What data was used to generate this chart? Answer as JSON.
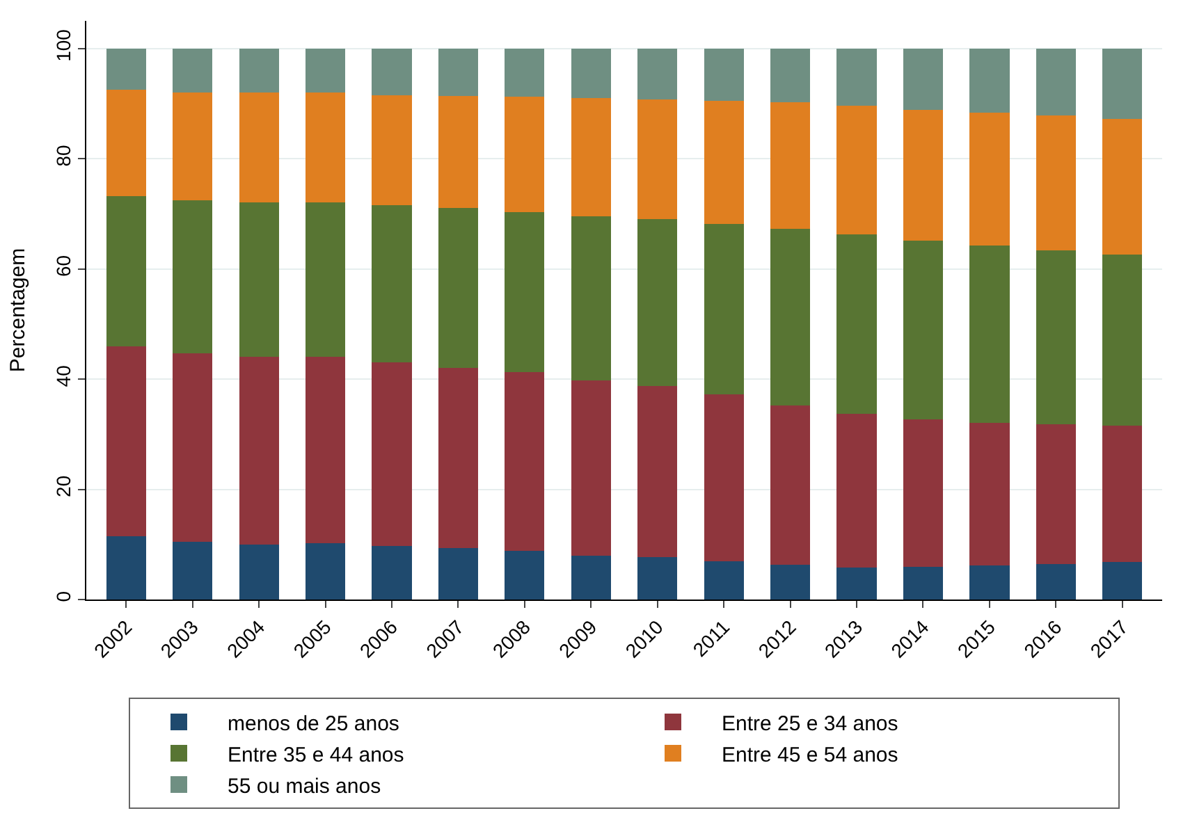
{
  "chart_data": {
    "type": "bar",
    "stacked": true,
    "ylabel": "Percentagem",
    "categories": [
      "2002",
      "2003",
      "2004",
      "2005",
      "2006",
      "2007",
      "2008",
      "2009",
      "2010",
      "2011",
      "2012",
      "2013",
      "2014",
      "2015",
      "2016",
      "2017"
    ],
    "series": [
      {
        "name": "menos de 25 anos",
        "color": "#1f4a6e",
        "values": [
          11.5,
          10.5,
          10,
          10.2,
          9.7,
          9.3,
          8.8,
          8,
          7.7,
          7,
          6.3,
          5.8,
          5.9,
          6.2,
          6.5,
          6.8
        ]
      },
      {
        "name": "Entre 25 e 34 anos",
        "color": "#8f363d",
        "values": [
          34.5,
          34.2,
          34,
          33.8,
          33.3,
          32.7,
          32.5,
          31.8,
          31,
          30.2,
          28.9,
          27.9,
          26.8,
          25.8,
          25.3,
          24.8
        ]
      },
      {
        "name": "Entre 35 e 44 anos",
        "color": "#587533",
        "values": [
          27.2,
          27.8,
          28,
          28,
          28.5,
          29,
          29,
          29.7,
          30.3,
          31,
          32.1,
          32.5,
          32.4,
          32.3,
          31.6,
          31
        ]
      },
      {
        "name": "Entre 45 e 54 anos",
        "color": "#e07f20",
        "values": [
          19.3,
          19.5,
          20,
          20,
          20,
          20.4,
          20.9,
          21.5,
          21.7,
          22.3,
          22.9,
          23.4,
          23.7,
          24,
          24.4,
          24.6
        ]
      },
      {
        "name": "55 ou mais anos",
        "color": "#6f8f82",
        "values": [
          7.5,
          8,
          8,
          8,
          8.5,
          8.6,
          8.8,
          9,
          9.3,
          9.5,
          9.8,
          10.4,
          11.2,
          11.7,
          12.2,
          12.8
        ]
      }
    ],
    "ylim": [
      0,
      105
    ],
    "yticks": [
      0,
      20,
      40,
      60,
      80,
      100
    ],
    "grid": "y",
    "legend": "bottom"
  }
}
